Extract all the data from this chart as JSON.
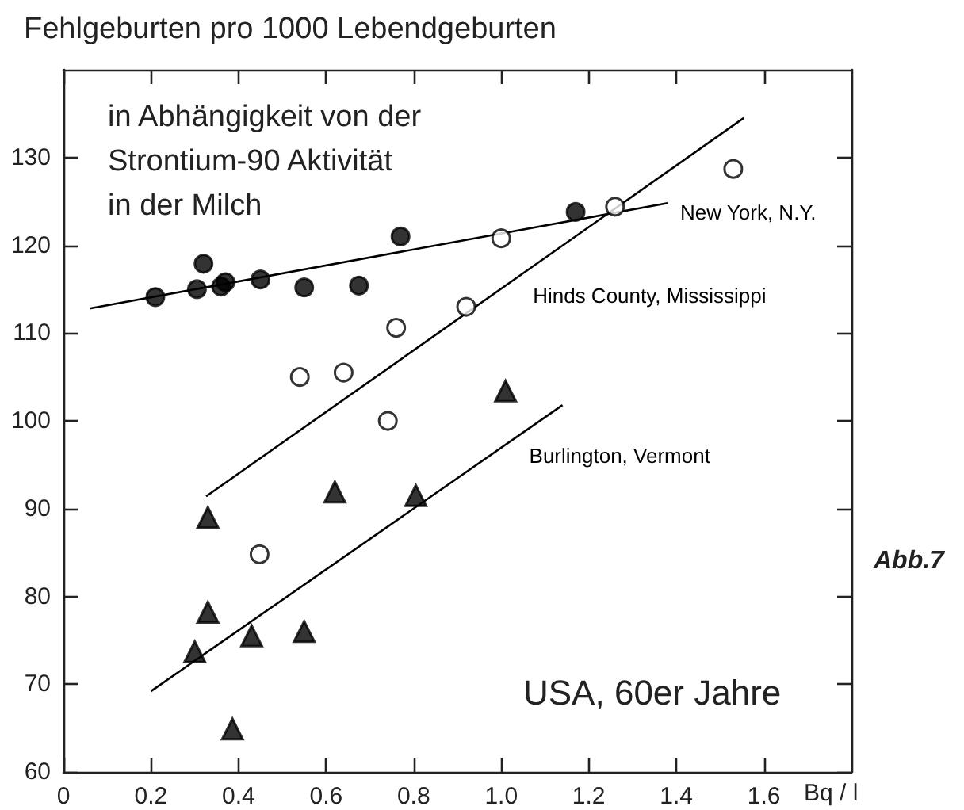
{
  "chart_data": {
    "type": "scatter",
    "ylabel": "Fehlgeburten pro 1000 Lebendgeburten",
    "xlabel": "Bq / l",
    "xlim": [
      0,
      1.8
    ],
    "xticks": [
      {
        "value": 0,
        "label": "0"
      },
      0.2,
      0.4,
      0.6,
      0.8,
      {
        "value": 1,
        "label": "1.0"
      },
      1.2,
      1.4,
      1.6
    ],
    "ylim": [
      60,
      140
    ],
    "yticks": [
      60,
      70,
      80,
      90,
      100,
      110,
      120,
      130
    ],
    "grid": false,
    "series": [
      {
        "marker": "circle",
        "color": "#000000",
        "x": [
          0.21,
          0.305,
          0.32,
          0.36,
          0.37,
          0.45,
          0.55,
          0.675,
          0.77,
          1.17
        ],
        "values": [
          114.1,
          115.0,
          117.9,
          115.3,
          115.8,
          116.1,
          115.2,
          115.4,
          121.0,
          123.8
        ]
      },
      {
        "marker": "circle",
        "color": "#ffffff",
        "x": [
          0.448,
          0.54,
          0.64,
          0.741,
          0.76,
          0.92,
          1.0,
          1.26,
          1.53
        ],
        "values": [
          84.8,
          105.0,
          105.5,
          100.0,
          110.6,
          113.0,
          120.8,
          124.4,
          128.7
        ]
      },
      {
        "marker": "triangle",
        "color": "#000000",
        "x": [
          0.3,
          0.33,
          0.33,
          0.386,
          0.43,
          0.55,
          0.62,
          0.805,
          1.01
        ],
        "values": [
          73.7,
          78.2,
          89.0,
          64.9,
          75.5,
          76.0,
          91.9,
          91.5,
          103.4
        ]
      },
      {
        "type": "line",
        "name": "New York, N.Y.",
        "marker": "none",
        "color": "#000000",
        "x": [
          0.06,
          1.38
        ],
        "values": [
          112.8,
          124.8
        ]
      },
      {
        "type": "line",
        "name": "Hinds County, Mississippi",
        "marker": "none",
        "color": "#000000",
        "x": [
          0.326,
          1.554
        ],
        "values": [
          91.4,
          134.5
        ]
      },
      {
        "type": "line",
        "name": "Burlington, Vermont",
        "marker": "none",
        "color": "#000000",
        "x": [
          0.2,
          1.14
        ],
        "values": [
          69.2,
          101.8
        ]
      }
    ],
    "annotations": [
      "in Abhängigkeit von der\nStrontium-90 Aktivität\nin der Milch",
      "USA, 60er Jahre",
      "Abb.7"
    ]
  }
}
